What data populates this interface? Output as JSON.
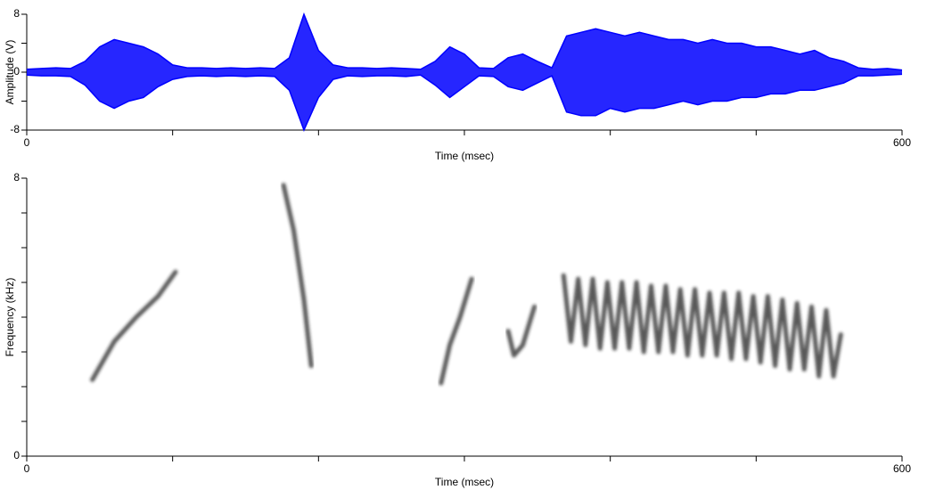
{
  "chart_data": [
    {
      "type": "line",
      "y_label": "Amplitude (V)",
      "x_label": "Time (msec)",
      "xlim": [
        0,
        600
      ],
      "ylim": [
        -8,
        8
      ],
      "xticks": [
        0,
        600
      ],
      "xminor": [
        100,
        200,
        300,
        400,
        500
      ],
      "yticks": [
        -8,
        0,
        8
      ],
      "yminor": [
        -4,
        4
      ],
      "x": [
        0,
        10,
        20,
        30,
        40,
        50,
        60,
        70,
        80,
        90,
        100,
        110,
        120,
        130,
        140,
        150,
        160,
        170,
        180,
        190,
        200,
        210,
        220,
        230,
        240,
        250,
        260,
        270,
        280,
        290,
        300,
        310,
        320,
        330,
        340,
        350,
        360,
        370,
        380,
        390,
        400,
        410,
        420,
        430,
        440,
        450,
        460,
        470,
        480,
        490,
        500,
        510,
        520,
        530,
        540,
        550,
        560,
        570,
        580,
        590,
        600
      ],
      "series": [
        {
          "color": "#0000ff",
          "values": [
            0.4,
            0.5,
            0.6,
            0.5,
            1.5,
            3.5,
            4.5,
            4.0,
            3.5,
            2.5,
            1.0,
            0.6,
            0.6,
            0.5,
            0.6,
            0.5,
            0.6,
            0.5,
            2.0,
            8.0,
            3.0,
            1.0,
            0.6,
            0.6,
            0.5,
            0.6,
            0.5,
            0.4,
            1.5,
            3.5,
            2.5,
            0.6,
            0.5,
            2.0,
            2.5,
            1.5,
            0.6,
            5.0,
            5.5,
            6.0,
            5.5,
            5.0,
            5.5,
            5.0,
            4.5,
            4.5,
            4.0,
            4.5,
            4.0,
            4.0,
            3.5,
            3.5,
            3.0,
            2.5,
            3.0,
            2.0,
            1.5,
            0.6,
            0.4,
            0.5,
            0.3
          ]
        },
        {
          "color": "#0000ff",
          "values": [
            -0.4,
            -0.5,
            -0.5,
            -0.6,
            -1.8,
            -4.0,
            -5.0,
            -4.0,
            -3.5,
            -2.0,
            -1.0,
            -0.6,
            -0.5,
            -0.6,
            -0.5,
            -0.6,
            -0.5,
            -0.6,
            -2.5,
            -8.0,
            -3.5,
            -1.0,
            -0.5,
            -0.6,
            -0.5,
            -0.5,
            -0.6,
            -0.4,
            -1.8,
            -3.5,
            -2.0,
            -0.5,
            -0.6,
            -2.0,
            -2.5,
            -1.5,
            -0.5,
            -5.5,
            -6.0,
            -6.0,
            -5.0,
            -5.5,
            -5.0,
            -5.0,
            -4.5,
            -4.0,
            -4.5,
            -4.0,
            -4.0,
            -3.5,
            -3.5,
            -3.0,
            -3.0,
            -2.5,
            -2.5,
            -2.0,
            -1.5,
            -0.5,
            -0.5,
            -0.4,
            -0.3
          ]
        }
      ]
    },
    {
      "type": "spectrogram",
      "y_label": "Frequency (kHz)",
      "x_label": "Time (msec)",
      "xlim": [
        0,
        600
      ],
      "ylim": [
        0,
        8
      ],
      "xticks": [
        0,
        600
      ],
      "xminor": [
        100,
        200,
        300,
        400,
        500
      ],
      "yticks": [
        0,
        8
      ],
      "yminor": [
        1,
        2,
        3,
        4,
        5,
        6,
        7
      ],
      "color": "#222222",
      "traces": [
        {
          "x": [
            45,
            60,
            75,
            90,
            102
          ],
          "y": [
            2.2,
            3.3,
            4.0,
            4.6,
            5.3
          ]
        },
        {
          "x": [
            176,
            183,
            190,
            195
          ],
          "y": [
            7.8,
            6.5,
            4.5,
            2.6
          ]
        },
        {
          "x": [
            284,
            290,
            297,
            305
          ],
          "y": [
            2.1,
            3.2,
            4.0,
            5.1
          ]
        },
        {
          "x": [
            330,
            334,
            340,
            348
          ],
          "y": [
            3.6,
            2.9,
            3.2,
            4.3
          ]
        },
        {
          "x": [
            368,
            373,
            378,
            383,
            388,
            393,
            398,
            403,
            408,
            413,
            418,
            423,
            428,
            433,
            438,
            443,
            448,
            453,
            458,
            463,
            468,
            473,
            478,
            483,
            488,
            493,
            498,
            503,
            508,
            513,
            518,
            523,
            528,
            533,
            538,
            543,
            548,
            553,
            558
          ],
          "y": [
            5.2,
            3.3,
            5.1,
            3.2,
            5.1,
            3.1,
            5.0,
            3.1,
            5.0,
            3.1,
            5.0,
            3.0,
            4.9,
            3.0,
            4.9,
            3.0,
            4.8,
            2.9,
            4.8,
            2.9,
            4.7,
            2.9,
            4.7,
            2.8,
            4.7,
            2.8,
            4.6,
            2.7,
            4.6,
            2.6,
            4.5,
            2.5,
            4.4,
            2.5,
            4.3,
            2.3,
            4.2,
            2.3,
            3.5
          ]
        }
      ]
    }
  ]
}
